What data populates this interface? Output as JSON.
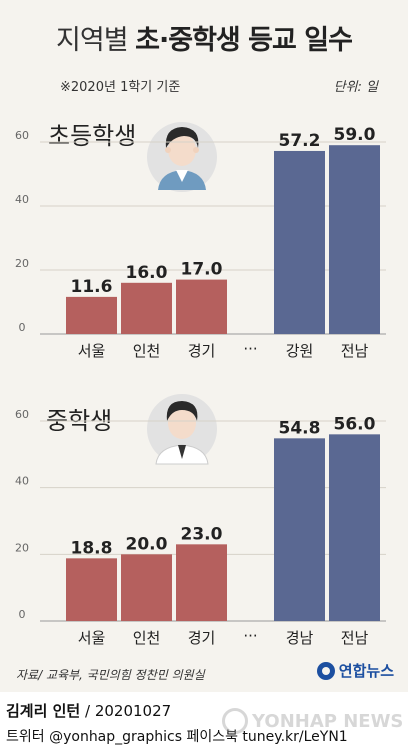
{
  "header": {
    "title_light": "지역별 ",
    "title_bold": "초·중학생 등교 일수",
    "note": "※2020년 1학기 기준",
    "unit": "단위: 일"
  },
  "chart_data": [
    {
      "type": "bar",
      "title": "초등학생",
      "categories": [
        "서울",
        "인천",
        "경기",
        "강원",
        "전남"
      ],
      "values": [
        11.6,
        16.0,
        17.0,
        57.2,
        59.0
      ],
      "value_labels": [
        "11.6",
        "16.0",
        "17.0",
        "57.2",
        "59.0"
      ],
      "colors": [
        "#b5605e",
        "#b5605e",
        "#b5605e",
        "#5a6892",
        "#5a6892"
      ],
      "yticks": [
        "0",
        "20",
        "40",
        "60"
      ],
      "ylim": [
        0,
        60
      ],
      "grid": true
    },
    {
      "type": "bar",
      "title": "중학생",
      "categories": [
        "서울",
        "인천",
        "경기",
        "경남",
        "전남"
      ],
      "values": [
        18.8,
        20.0,
        23.0,
        54.8,
        56.0
      ],
      "value_labels": [
        "18.8",
        "20.0",
        "23.0",
        "54.8",
        "56.0"
      ],
      "colors": [
        "#b5605e",
        "#b5605e",
        "#b5605e",
        "#5a6892",
        "#5a6892"
      ],
      "yticks": [
        "0",
        "20",
        "40",
        "60"
      ],
      "ylim": [
        0,
        60
      ],
      "grid": true
    }
  ],
  "ellipsis": "···",
  "footer": {
    "source": "자료/ 교육부, 국민의힘 정찬민 의원실",
    "logo": "연합뉴스",
    "credit_name": "김계리 인턴",
    "credit_date": " / 20201027",
    "credit_social": "트위터 @yonhap_graphics  페이스북 tuney.kr/LeYN1",
    "watermark": "YONHAP NEWS"
  },
  "icons": [
    "student-boy-icon",
    "student-middle-icon",
    "yonhap-logo-icon"
  ]
}
